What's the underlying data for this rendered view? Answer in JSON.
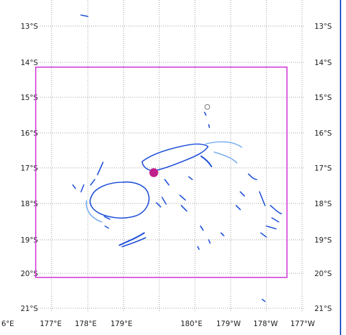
{
  "map": {
    "lat_labels_left": [
      "13°S",
      "14°S",
      "15°S",
      "16°S",
      "17°S",
      "18°S",
      "19°S",
      "20°S",
      "21°S"
    ],
    "lat_labels_right": [
      "13°S",
      "14°S",
      "15°S",
      "16°S",
      "17°S",
      "18°S",
      "19°S",
      "20°S",
      "21°S"
    ],
    "lon_labels": [
      "6°E",
      "177°E",
      "178°E",
      "179°E",
      "180°E",
      "179°W",
      "178°W",
      "177°W"
    ],
    "colors": {
      "grid": "#9a9a9a",
      "coast": "#1e4fd8",
      "coast_light": "#78aef0",
      "bbox": "#d23ad9",
      "marker": "#c0208a",
      "right_border": "#2a55c8"
    },
    "markers": [
      {
        "name": "location-marker",
        "shape": "filled-circle"
      },
      {
        "name": "location-marker-hollow",
        "shape": "hollow-circle"
      }
    ]
  }
}
